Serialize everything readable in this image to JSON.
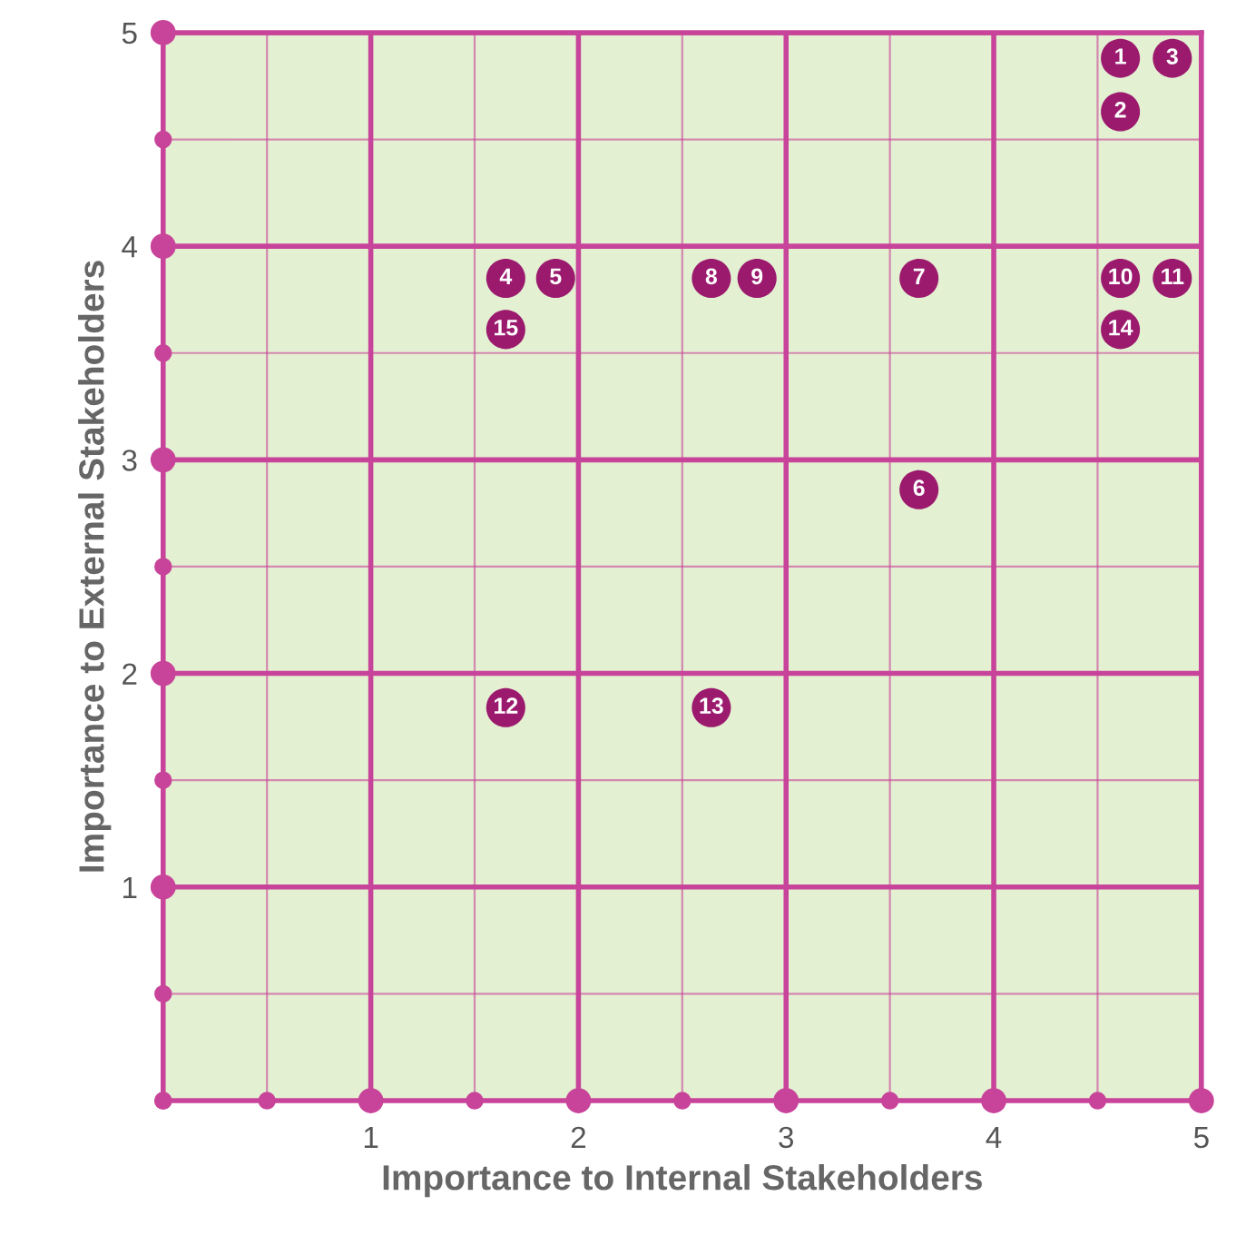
{
  "chart_data": {
    "type": "scatter",
    "xlabel": "Importance to Internal Stakeholders",
    "ylabel": "Importance to External Stakeholders",
    "x": [
      4.61,
      4.61,
      4.86,
      1.65,
      1.89,
      3.64,
      3.64,
      2.64,
      2.86,
      4.61,
      4.86,
      1.65,
      2.64,
      4.61,
      1.65
    ],
    "series": [
      {
        "color": "#9b1a6e",
        "values": [
          4.88,
          4.63,
          4.88,
          3.85,
          3.85,
          2.86,
          3.85,
          3.85,
          3.85,
          3.85,
          3.85,
          1.84,
          1.84,
          3.61,
          3.61
        ]
      }
    ],
    "annotations": [
      {
        "text": "1",
        "x": 4.61,
        "y": 4.88
      },
      {
        "text": "2",
        "x": 4.61,
        "y": 4.63
      },
      {
        "text": "3",
        "x": 4.86,
        "y": 4.88
      },
      {
        "text": "4",
        "x": 1.65,
        "y": 3.85
      },
      {
        "text": "5",
        "x": 1.89,
        "y": 3.85
      },
      {
        "text": "6",
        "x": 3.64,
        "y": 2.86
      },
      {
        "text": "7",
        "x": 3.64,
        "y": 3.85
      },
      {
        "text": "8",
        "x": 2.64,
        "y": 3.85
      },
      {
        "text": "9",
        "x": 2.86,
        "y": 3.85
      },
      {
        "text": "10",
        "x": 4.61,
        "y": 3.85
      },
      {
        "text": "11",
        "x": 4.86,
        "y": 3.85
      },
      {
        "text": "12",
        "x": 1.65,
        "y": 1.84
      },
      {
        "text": "13",
        "x": 2.64,
        "y": 1.84
      },
      {
        "text": "14",
        "x": 4.61,
        "y": 3.61
      },
      {
        "text": "15",
        "x": 1.65,
        "y": 3.61
      }
    ],
    "xlim": [
      0,
      5
    ],
    "ylim": [
      0,
      5
    ],
    "xticks": [
      {
        "value": 0,
        "label": null
      },
      {
        "value": 0.5,
        "label": null
      },
      1,
      {
        "value": 1.5,
        "label": null
      },
      2,
      {
        "value": 2.5,
        "label": null
      },
      3,
      {
        "value": 3.5,
        "label": null
      },
      4,
      {
        "value": 4.5,
        "label": null
      },
      5
    ],
    "yticks": [
      {
        "value": 0,
        "label": null
      },
      {
        "value": 0.5,
        "label": null
      },
      1,
      {
        "value": 1.5,
        "label": null
      },
      2,
      {
        "value": 2.5,
        "label": null
      },
      3,
      {
        "value": 3.5,
        "label": null
      },
      4,
      {
        "value": 4.5,
        "label": null
      },
      5
    ],
    "grid": true,
    "marker": "circle"
  }
}
